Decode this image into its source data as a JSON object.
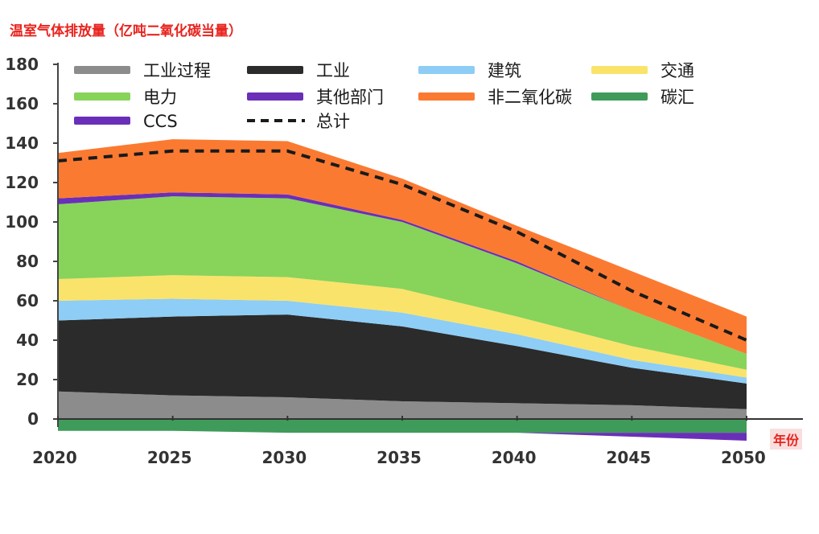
{
  "chart_data": {
    "type": "area",
    "title": "温室气体排放量（亿吨二氧化碳当量）",
    "x_unit": "年份",
    "x": [
      2020,
      2025,
      2030,
      2035,
      2040,
      2045,
      2050
    ],
    "ylim": [
      -10,
      180
    ],
    "yticks": [
      0,
      20,
      40,
      60,
      80,
      100,
      120,
      140,
      160,
      180
    ],
    "series": [
      {
        "name": "工业过程",
        "color": "#8c8c8c",
        "values": [
          14,
          12,
          11,
          9,
          8,
          7,
          5
        ]
      },
      {
        "name": "工业",
        "color": "#2b2b2b",
        "values": [
          36,
          40,
          42,
          38,
          29,
          19,
          13
        ]
      },
      {
        "name": "建筑",
        "color": "#8ecdf5",
        "values": [
          10,
          9,
          7,
          7,
          6,
          4,
          3
        ]
      },
      {
        "name": "交通",
        "color": "#fae36b",
        "values": [
          11,
          12,
          12,
          12,
          9,
          7,
          4
        ]
      },
      {
        "name": "电力",
        "color": "#88d35a",
        "values": [
          38,
          40,
          40,
          34,
          27,
          18,
          8
        ]
      },
      {
        "name": "其他部门",
        "color": "#6a2fb8",
        "values": [
          3,
          2,
          2,
          1,
          1,
          0,
          0
        ]
      },
      {
        "name": "非二氧化碳",
        "color": "#fb7a32",
        "values": [
          23,
          27,
          27,
          21,
          18,
          20,
          19
        ]
      },
      {
        "name": "碳汇",
        "color": "#3f9b5a",
        "values": [
          -6,
          -6,
          -7,
          -7,
          -7,
          -7,
          -7
        ]
      },
      {
        "name": "CCS",
        "color": "#6a2fb8",
        "values": [
          0,
          0,
          0,
          0,
          0,
          -2,
          -4
        ]
      },
      {
        "name": "总计",
        "color": "#1a1a1a",
        "style": "dashed",
        "values": [
          131,
          136,
          136,
          119,
          95,
          65,
          40
        ]
      }
    ],
    "legend": {
      "placement": "top",
      "items": [
        "工业过程",
        "工业",
        "建筑",
        "交通",
        "电力",
        "其他部门",
        "非二氧化碳",
        "碳汇",
        "CCS",
        "总计"
      ]
    }
  }
}
